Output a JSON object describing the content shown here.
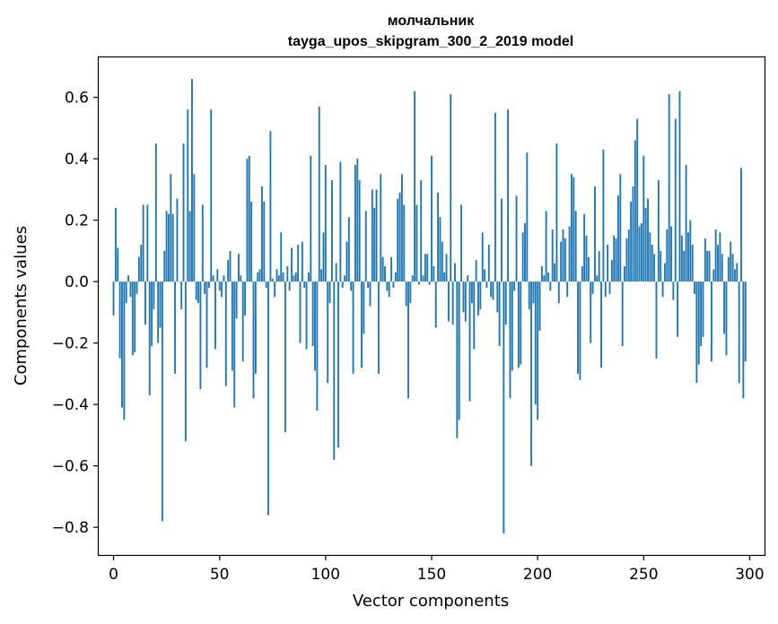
{
  "chart_data": {
    "type": "bar",
    "title": "молчальник",
    "subtitle": "tayga_upos_skipgram_300_2_2019 model",
    "xlabel": "Vector components",
    "ylabel": "Components values",
    "xlim": [
      -7,
      307
    ],
    "ylim": [
      -0.89,
      0.73
    ],
    "xticks": [
      0,
      50,
      100,
      150,
      200,
      250,
      300
    ],
    "xtick_labels": [
      "0",
      "50",
      "100",
      "150",
      "200",
      "250",
      "300"
    ],
    "yticks": [
      -0.8,
      -0.6,
      -0.4,
      -0.2,
      0.0,
      0.2,
      0.4,
      0.6
    ],
    "ytick_labels": [
      "−0.8",
      "−0.6",
      "−0.4",
      "−0.2",
      "0.0",
      "0.2",
      "0.4",
      "0.6"
    ],
    "bar_color": "#1f77b4",
    "grid": false,
    "values": [
      -0.11,
      0.24,
      0.11,
      -0.25,
      -0.41,
      -0.45,
      -0.07,
      0.02,
      -0.05,
      -0.24,
      -0.23,
      -0.04,
      0.08,
      0.12,
      0.25,
      -0.14,
      0.25,
      -0.37,
      -0.21,
      -0.09,
      0.45,
      -0.2,
      -0.15,
      -0.78,
      0.1,
      0.23,
      0.22,
      0.35,
      0.22,
      -0.3,
      0.27,
      0.0,
      -0.09,
      0.45,
      -0.52,
      0.56,
      0.23,
      0.66,
      0.35,
      -0.06,
      -0.07,
      -0.35,
      0.25,
      -0.04,
      -0.28,
      -0.02,
      0.56,
      0.02,
      -0.22,
      0.04,
      -0.03,
      -0.05,
      0.02,
      -0.34,
      0.07,
      0.1,
      -0.29,
      -0.41,
      -0.12,
      0.09,
      0.02,
      -0.26,
      -0.11,
      0.4,
      0.41,
      0.26,
      -0.38,
      -0.3,
      0.03,
      0.04,
      0.31,
      0.26,
      -0.02,
      -0.76,
      0.49,
      0.01,
      -0.05,
      0.04,
      0.02,
      0.16,
      0.03,
      -0.49,
      0.05,
      -0.03,
      0.11,
      0.02,
      0.03,
      0.12,
      -0.2,
      0.13,
      -0.02,
      -0.22,
      0.03,
      0.41,
      -0.21,
      -0.29,
      -0.42,
      0.57,
      0.04,
      0.16,
      0.38,
      -0.33,
      -0.07,
      0.33,
      -0.58,
      0.06,
      -0.54,
      0.39,
      -0.02,
      0.02,
      0.13,
      0.21,
      -0.03,
      -0.3,
      0.38,
      0.4,
      0.33,
      -0.28,
      -0.17,
      0.23,
      -0.02,
      -0.08,
      0.3,
      0.24,
      0.3,
      -0.3,
      0.35,
      0.08,
      0.05,
      -0.03,
      -0.05,
      0.08,
      -0.02,
      0.03,
      0.27,
      0.29,
      0.35,
      0.25,
      -0.08,
      -0.38,
      -0.07,
      0.02,
      0.62,
      0.25,
      -0.01,
      0.33,
      0.02,
      0.09,
      0.09,
      -0.01,
      0.41,
      0.05,
      -0.15,
      0.29,
      0.21,
      0.13,
      0.03,
      0.09,
      -0.13,
      0.61,
      -0.14,
      0.06,
      -0.51,
      -0.45,
      0.25,
      -0.1,
      -0.13,
      0.02,
      -0.39,
      -0.07,
      -0.22,
      0.07,
      -0.11,
      -0.09,
      0.16,
      0.04,
      -0.02,
      0.12,
      -0.05,
      -0.06,
      0.55,
      -0.1,
      -0.21,
      0.27,
      -0.82,
      -0.14,
      0.56,
      -0.38,
      -0.29,
      -0.03,
      0.28,
      -0.28,
      -0.27,
      0.16,
      0.19,
      0.42,
      -0.09,
      -0.6,
      -0.07,
      -0.4,
      -0.45,
      -0.16,
      0.05,
      0.02,
      0.23,
      0.03,
      -0.03,
      0.17,
      0.06,
      0.45,
      -0.07,
      0.13,
      0.17,
      0.14,
      -0.05,
      0.18,
      0.35,
      0.34,
      0.23,
      -0.3,
      -0.32,
      0.05,
      0.22,
      0.15,
      0.08,
      -0.2,
      -0.04,
      0.31,
      0.02,
      0.1,
      -0.28,
      0.43,
      -0.05,
      0.12,
      -0.04,
      0.07,
      0.15,
      0.14,
      0.28,
      0.35,
      -0.21,
      0.05,
      0.14,
      0.17,
      0.26,
      0.31,
      0.46,
      0.53,
      0.18,
      0.19,
      0.41,
      0.24,
      0.27,
      0.16,
      0.12,
      0.09,
      -0.25,
      0.33,
      0.1,
      -0.05,
      0.06,
      0.17,
      0.61,
      0.18,
      -0.06,
      0.53,
      -0.18,
      0.62,
      0.15,
      0.1,
      0.38,
      0.16,
      0.2,
      0.12,
      -0.04,
      -0.33,
      -0.27,
      -0.21,
      -0.18,
      0.14,
      0.1,
      0.1,
      -0.26,
      0.04,
      0.17,
      0.12,
      0.16,
      0.09,
      -0.17,
      -0.24,
      0.08,
      0.13,
      0.09,
      0.04,
      0.06,
      -0.33,
      0.37,
      -0.38,
      -0.26
    ],
    "bar_width": 0.8
  }
}
